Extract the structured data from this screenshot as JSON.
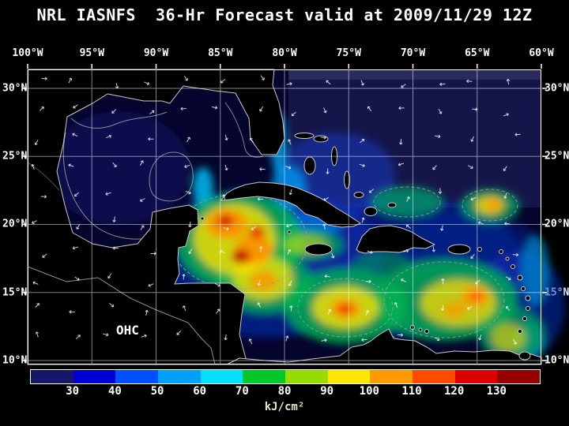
{
  "title": "NRL IASNFS  36-Hr Forecast valid at 2009/11/29 12Z",
  "map": {
    "lon_labels": [
      "100°W",
      "95°W",
      "90°W",
      "85°W",
      "80°W",
      "75°W",
      "70°W",
      "65°W",
      "60°W"
    ],
    "lat_labels": [
      "30°N",
      "25°N",
      "20°N",
      "15°N",
      "10°N"
    ],
    "ohc_label": "OHC"
  },
  "colorbar": {
    "ticks": [
      "30",
      "40",
      "50",
      "60",
      "70",
      "80",
      "90",
      "100",
      "110",
      "120",
      "130"
    ],
    "unit": "kJ/cm²",
    "colors": [
      "#16166b",
      "#0000d2",
      "#0050ff",
      "#00a0ff",
      "#00e1ff",
      "#00c828",
      "#96dc00",
      "#ffe600",
      "#ff9b00",
      "#ff4b00",
      "#dc0000",
      "#960000"
    ]
  },
  "chart_data": {
    "type": "heatmap",
    "title": "NRL IASNFS 36-Hr Forecast valid at 2009/11/29 12Z",
    "field_label": "OHC",
    "x_ticks": [
      "100°W",
      "95°W",
      "90°W",
      "85°W",
      "80°W",
      "75°W",
      "70°W",
      "65°W",
      "60°W"
    ],
    "y_ticks": [
      "30°N",
      "25°N",
      "20°N",
      "15°N",
      "10°N"
    ],
    "colorbar_ticks": [
      30,
      40,
      50,
      60,
      70,
      80,
      90,
      100,
      110,
      120,
      130
    ],
    "colorbar_unit": "kJ/cm²",
    "legend_position": "bottom"
  }
}
